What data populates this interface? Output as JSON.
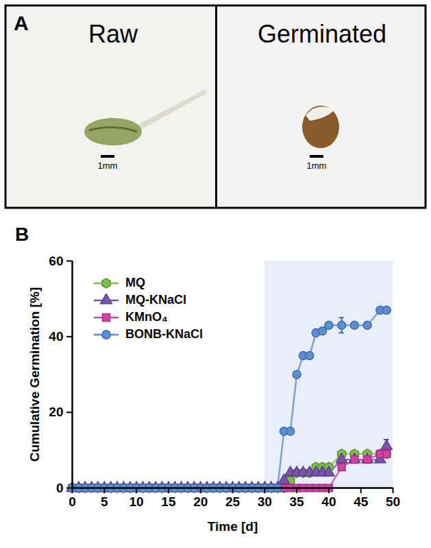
{
  "panel_a": {
    "label": "A",
    "images": [
      {
        "title": "Raw",
        "scale_bar": "1mm"
      },
      {
        "title": "Germinated",
        "scale_bar": "1mm"
      }
    ]
  },
  "chart_data": {
    "type": "line",
    "panel_label": "B",
    "xlabel": "Time [d]",
    "ylabel": "Cumulative Germination [%]",
    "xlim": [
      0,
      50
    ],
    "xticks": [
      0,
      5,
      10,
      15,
      20,
      25,
      30,
      35,
      40,
      45,
      50
    ],
    "ylim": [
      0,
      60
    ],
    "yticks": [
      0,
      20,
      40,
      60
    ],
    "grid": false,
    "legend": "top-left",
    "highlight": {
      "x": [
        30,
        50
      ],
      "color": "#e9eff8"
    },
    "x": [
      0,
      1,
      2,
      3,
      4,
      5,
      6,
      7,
      8,
      9,
      10,
      11,
      12,
      13,
      14,
      15,
      16,
      17,
      18,
      19,
      20,
      21,
      22,
      23,
      24,
      25,
      26,
      27,
      28,
      29,
      30,
      31,
      32,
      33,
      34,
      35,
      36,
      37,
      38,
      39,
      40,
      42,
      44,
      46,
      48,
      49
    ],
    "series": [
      {
        "name": "MQ",
        "color": "#7cc04a",
        "marker": "hexagon",
        "values": [
          0,
          0,
          0,
          0,
          0,
          0,
          0,
          0,
          0,
          0,
          0,
          0,
          0,
          0,
          0,
          0,
          0,
          0,
          0,
          0,
          0,
          0,
          0,
          0,
          0,
          0,
          0,
          0,
          0,
          0,
          0,
          0,
          0,
          0,
          2,
          4,
          4,
          4,
          5.5,
          5.5,
          5.5,
          9,
          9,
          9,
          9,
          9
        ]
      },
      {
        "name": "MQ-KNaCl",
        "color": "#7c52b0",
        "marker": "triangle",
        "values": [
          0,
          0,
          0,
          0,
          0,
          0,
          0,
          0,
          0,
          0,
          0,
          0,
          0,
          0,
          0,
          0,
          0,
          0,
          0,
          0,
          0,
          0,
          0,
          0,
          0,
          0,
          0,
          0,
          0,
          0,
          0,
          0,
          0,
          2,
          4,
          4,
          4,
          4,
          4,
          4,
          4,
          7.5,
          7.5,
          7.5,
          7.5,
          11
        ],
        "errors": [
          null,
          null,
          null,
          null,
          null,
          null,
          null,
          null,
          null,
          null,
          null,
          null,
          null,
          null,
          null,
          null,
          null,
          null,
          null,
          null,
          null,
          null,
          null,
          null,
          null,
          null,
          null,
          null,
          null,
          null,
          null,
          null,
          null,
          null,
          null,
          null,
          null,
          null,
          null,
          null,
          null,
          null,
          null,
          null,
          null,
          1.8
        ]
      },
      {
        "name": "KMnO₄",
        "color": "#d442a8",
        "marker": "square",
        "values": [
          0,
          0,
          0,
          0,
          0,
          0,
          0,
          0,
          0,
          0,
          0,
          0,
          0,
          0,
          0,
          0,
          0,
          0,
          0,
          0,
          0,
          0,
          0,
          0,
          0,
          0,
          0,
          0,
          0,
          0,
          0,
          0,
          0,
          0,
          0,
          0,
          0,
          0,
          0,
          0,
          0,
          5.5,
          7.5,
          7.5,
          9,
          9
        ]
      },
      {
        "name": "BONB-KNaCl",
        "color": "#5a8fd6",
        "marker": "circle",
        "values": [
          0,
          0,
          0,
          0,
          0,
          0,
          0,
          0,
          0,
          0,
          0,
          0,
          0,
          0,
          0,
          0,
          0,
          0,
          0,
          0,
          0,
          0,
          0,
          0,
          0,
          0,
          0,
          0,
          0,
          0,
          0,
          0,
          0,
          15,
          15,
          30,
          35,
          35,
          41,
          41.5,
          43,
          43,
          43,
          43,
          47,
          47
        ],
        "errors": [
          null,
          null,
          null,
          null,
          null,
          null,
          null,
          null,
          null,
          null,
          null,
          null,
          null,
          null,
          null,
          null,
          null,
          null,
          null,
          null,
          null,
          null,
          null,
          null,
          null,
          null,
          null,
          null,
          null,
          null,
          null,
          null,
          null,
          null,
          null,
          null,
          null,
          null,
          null,
          null,
          null,
          2,
          null,
          null,
          null,
          null
        ]
      }
    ]
  }
}
